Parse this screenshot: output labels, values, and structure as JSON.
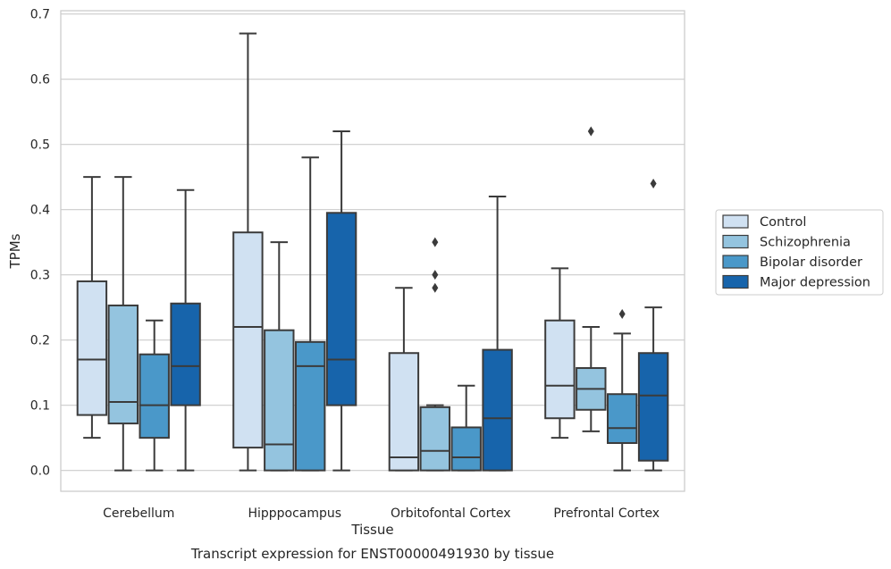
{
  "chart_data": {
    "type": "box",
    "title": "",
    "caption": "Transcript expression for ENST00000491930 by tissue",
    "xlabel": "Tissue",
    "ylabel": "TPMs",
    "ylim": [
      -0.032,
      0.705
    ],
    "yticks": [
      0.0,
      0.1,
      0.2,
      0.3,
      0.4,
      0.5,
      0.6,
      0.7
    ],
    "ytick_labels": [
      "0.0",
      "0.1",
      "0.2",
      "0.3",
      "0.4",
      "0.5",
      "0.6",
      "0.7"
    ],
    "grid": true,
    "legend_position": "right",
    "categories": [
      "Cerebellum",
      "Hipppocampus",
      "Orbitofontal Cortex",
      "Prefrontal Cortex"
    ],
    "series": [
      {
        "name": "Control",
        "color": "#d0e1f2",
        "boxes": [
          {
            "whislo": 0.05,
            "q1": 0.085,
            "med": 0.17,
            "q3": 0.29,
            "whishi": 0.45,
            "fliers": []
          },
          {
            "whislo": 0.0,
            "q1": 0.035,
            "med": 0.22,
            "q3": 0.365,
            "whishi": 0.67,
            "fliers": []
          },
          {
            "whislo": 0.0,
            "q1": 0.0,
            "med": 0.02,
            "q3": 0.18,
            "whishi": 0.28,
            "fliers": []
          },
          {
            "whislo": 0.05,
            "q1": 0.08,
            "med": 0.13,
            "q3": 0.23,
            "whishi": 0.31,
            "fliers": []
          }
        ]
      },
      {
        "name": "Schizophrenia",
        "color": "#94c4df",
        "boxes": [
          {
            "whislo": 0.0,
            "q1": 0.072,
            "med": 0.105,
            "q3": 0.253,
            "whishi": 0.45,
            "fliers": []
          },
          {
            "whislo": 0.0,
            "q1": 0.0,
            "med": 0.04,
            "q3": 0.215,
            "whishi": 0.35,
            "fliers": []
          },
          {
            "whislo": 0.0,
            "q1": 0.0,
            "med": 0.03,
            "q3": 0.097,
            "whishi": 0.1,
            "fliers": [
              0.28,
              0.3,
              0.35
            ]
          },
          {
            "whislo": 0.06,
            "q1": 0.093,
            "med": 0.125,
            "q3": 0.157,
            "whishi": 0.22,
            "fliers": [
              0.52
            ]
          }
        ]
      },
      {
        "name": "Bipolar disorder",
        "color": "#4a98c9",
        "boxes": [
          {
            "whislo": 0.0,
            "q1": 0.05,
            "med": 0.1,
            "q3": 0.178,
            "whishi": 0.23,
            "fliers": []
          },
          {
            "whislo": 0.0,
            "q1": 0.0,
            "med": 0.16,
            "q3": 0.197,
            "whishi": 0.48,
            "fliers": []
          },
          {
            "whislo": 0.0,
            "q1": 0.0,
            "med": 0.02,
            "q3": 0.066,
            "whishi": 0.13,
            "fliers": []
          },
          {
            "whislo": 0.0,
            "q1": 0.042,
            "med": 0.065,
            "q3": 0.117,
            "whishi": 0.21,
            "fliers": [
              0.24
            ]
          }
        ]
      },
      {
        "name": "Major depression",
        "color": "#1764ab",
        "boxes": [
          {
            "whislo": 0.0,
            "q1": 0.1,
            "med": 0.16,
            "q3": 0.256,
            "whishi": 0.43,
            "fliers": []
          },
          {
            "whislo": 0.0,
            "q1": 0.1,
            "med": 0.17,
            "q3": 0.395,
            "whishi": 0.52,
            "fliers": []
          },
          {
            "whislo": 0.0,
            "q1": 0.0,
            "med": 0.08,
            "q3": 0.185,
            "whishi": 0.42,
            "fliers": []
          },
          {
            "whislo": 0.0,
            "q1": 0.015,
            "med": 0.115,
            "q3": 0.18,
            "whishi": 0.25,
            "fliers": [
              0.44
            ]
          }
        ]
      }
    ]
  }
}
